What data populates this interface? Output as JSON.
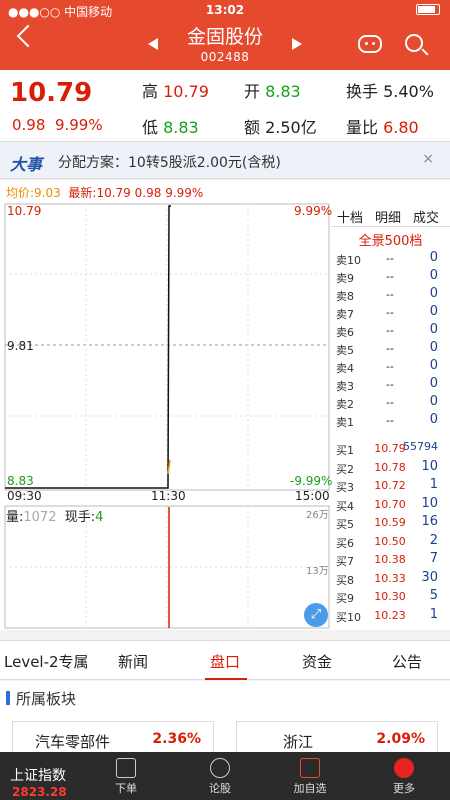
{
  "status_bar": {
    "carrier": "●●●○○ 中国移动",
    "time": "13:02"
  },
  "header": {
    "title": "金固股份",
    "code": "002488"
  },
  "quote": {
    "price": "10.79",
    "change": "0.98",
    "change_pct": "9.99%",
    "high_label": "高",
    "high": "10.79",
    "low_label": "低",
    "low": "8.83",
    "open_label": "开",
    "open": "8.83",
    "amount_label": "额",
    "amount": "2.50亿",
    "turnover_label": "换手",
    "turnover": "5.40%",
    "volume_ratio_label": "量比",
    "volume_ratio": "6.80"
  },
  "event": {
    "tag": "大事",
    "text": "分配方案：10转5股派2.00元(含税)",
    "close": "×"
  },
  "price_line": {
    "avg_label": "均价:",
    "avg": "9.03",
    "latest_label": "最新:",
    "latest": "10.79",
    "chg": "0.98",
    "pct": "9.99%"
  },
  "chart_data": {
    "type": "line",
    "price_axis": {
      "top": "10.79",
      "mid": "9.81",
      "bottom": "8.83",
      "top_pct": "9.99%",
      "bottom_pct": "-9.99%"
    },
    "time_axis": [
      "09:30",
      "11:30",
      "15:00"
    ],
    "volume_axis": {
      "top": "26万",
      "mid": "13万"
    },
    "volume_label": "量:",
    "volume": "1072",
    "hand_label": "现手:",
    "hand": "4"
  },
  "book": {
    "tabs": [
      "十档",
      "明细",
      "成交"
    ],
    "title": "全景500档",
    "asks": [
      {
        "n": "卖10",
        "p": "--",
        "v": "0"
      },
      {
        "n": "卖9",
        "p": "--",
        "v": "0"
      },
      {
        "n": "卖8",
        "p": "--",
        "v": "0"
      },
      {
        "n": "卖7",
        "p": "--",
        "v": "0"
      },
      {
        "n": "卖6",
        "p": "--",
        "v": "0"
      },
      {
        "n": "卖5",
        "p": "--",
        "v": "0"
      },
      {
        "n": "卖4",
        "p": "--",
        "v": "0"
      },
      {
        "n": "卖3",
        "p": "--",
        "v": "0"
      },
      {
        "n": "卖2",
        "p": "--",
        "v": "0"
      },
      {
        "n": "卖1",
        "p": "--",
        "v": "0"
      }
    ],
    "bids": [
      {
        "n": "买1",
        "p": "10.79",
        "v": "55794"
      },
      {
        "n": "买2",
        "p": "10.78",
        "v": "10"
      },
      {
        "n": "买3",
        "p": "10.72",
        "v": "1"
      },
      {
        "n": "买4",
        "p": "10.70",
        "v": "10"
      },
      {
        "n": "买5",
        "p": "10.59",
        "v": "16"
      },
      {
        "n": "买6",
        "p": "10.50",
        "v": "2"
      },
      {
        "n": "买7",
        "p": "10.38",
        "v": "7"
      },
      {
        "n": "买8",
        "p": "10.33",
        "v": "30"
      },
      {
        "n": "买9",
        "p": "10.30",
        "v": "5"
      },
      {
        "n": "买10",
        "p": "10.23",
        "v": "1"
      }
    ]
  },
  "tabs": [
    "Level-2专属",
    "新闻",
    "盘口",
    "资金",
    "公告"
  ],
  "sector": {
    "title": "所属板块",
    "cards": [
      {
        "name": "汽车零部件",
        "pct": "2.36%"
      },
      {
        "name": "浙江",
        "pct": "2.09%"
      }
    ]
  },
  "nav": {
    "index_label": "上证指数",
    "index_value": "2823.28",
    "items": [
      "下单",
      "论股",
      "加自选",
      "更多"
    ]
  }
}
